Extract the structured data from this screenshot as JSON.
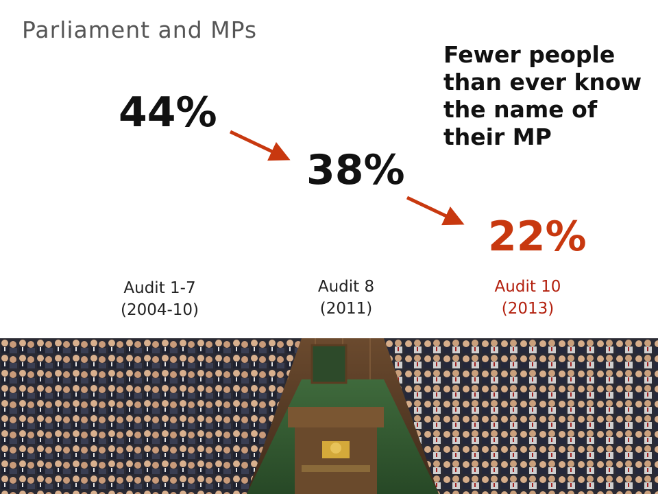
{
  "slide": {
    "title": "Parliament and MPs",
    "headline": "Fewer people than ever know the name of their MP",
    "accent_color": "#c8380f",
    "stats": [
      {
        "value": "44%",
        "label_line1": "Audit 1-7",
        "label_line2": "(2004-10)",
        "color": "#111111",
        "label_color": "#222222"
      },
      {
        "value": "38%",
        "label_line1": "Audit 8",
        "label_line2": "(2011)",
        "color": "#111111",
        "label_color": "#222222"
      },
      {
        "value": "22%",
        "label_line1": "Audit 10",
        "label_line2": "(2013)",
        "color": "#c8380f",
        "label_color": "#b3200e"
      }
    ],
    "photo": {
      "subject": "house-of-commons-chamber"
    }
  }
}
